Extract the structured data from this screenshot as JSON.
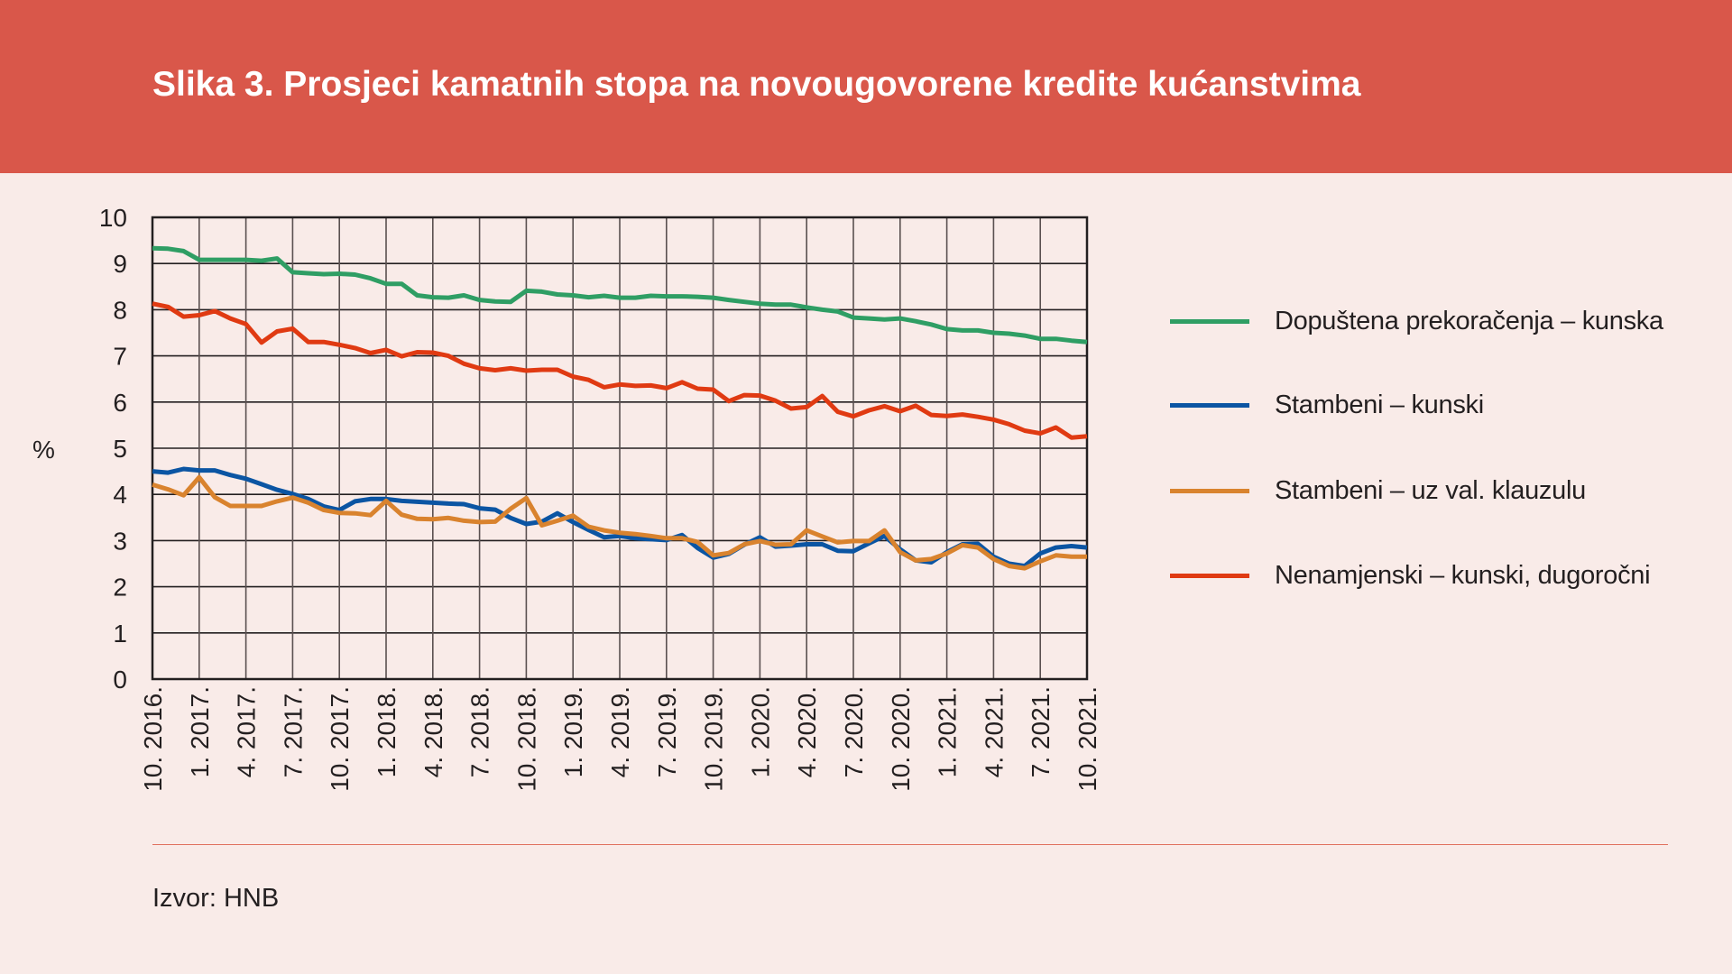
{
  "title": "Slika 3. Prosjeci kamatnih stopa na novougovorene kredite kućanstvima",
  "source": "Izvor: HNB",
  "colors": {
    "header": "#d9574a",
    "background": "#f9ebe8"
  },
  "chart_data": {
    "type": "line",
    "ylabel": "%",
    "ylim": [
      0,
      10
    ],
    "yticks": [
      "0",
      "1",
      "2",
      "3",
      "4",
      "5",
      "6",
      "7",
      "8",
      "9",
      "10"
    ],
    "x_start": "10.2016",
    "x_end": "10.2021",
    "frequency": "monthly",
    "xtick_labels": [
      "10. 2016.",
      "1. 2017.",
      "4. 2017.",
      "7. 2017.",
      "10. 2017.",
      "1. 2018.",
      "4. 2018.",
      "7. 2018.",
      "10. 2018.",
      "1. 2019.",
      "4. 2019.",
      "7. 2019.",
      "10. 2019.",
      "1. 2020.",
      "4. 2020.",
      "7. 2020.",
      "10. 2020.",
      "1. 2021.",
      "4. 2021.",
      "7. 2021.",
      "10. 2021."
    ],
    "grid": true,
    "legend_placement": "right",
    "series": [
      {
        "name": "Dopuštena prekoračenja – kunska",
        "color": "#2f9e64",
        "values": [
          9.33,
          9.32,
          9.27,
          9.08,
          9.08,
          9.08,
          9.08,
          9.06,
          9.11,
          8.81,
          8.79,
          8.77,
          8.78,
          8.76,
          8.68,
          8.56,
          8.56,
          8.31,
          8.27,
          8.26,
          8.31,
          8.21,
          8.18,
          8.17,
          8.41,
          8.39,
          8.33,
          8.31,
          8.27,
          8.3,
          8.26,
          8.26,
          8.3,
          8.29,
          8.29,
          8.28,
          8.26,
          8.21,
          8.17,
          8.13,
          8.11,
          8.11,
          8.05,
          8.0,
          7.96,
          7.83,
          7.81,
          7.79,
          7.81,
          7.75,
          7.68,
          7.58,
          7.55,
          7.55,
          7.5,
          7.48,
          7.44,
          7.37,
          7.37,
          7.33,
          7.3
        ]
      },
      {
        "name": "Stambeni – kunski",
        "color": "#0b55a3",
        "values": [
          4.5,
          4.47,
          4.55,
          4.52,
          4.52,
          4.42,
          4.34,
          4.22,
          4.1,
          4.01,
          3.9,
          3.74,
          3.66,
          3.85,
          3.9,
          3.9,
          3.86,
          3.84,
          3.82,
          3.8,
          3.79,
          3.7,
          3.67,
          3.49,
          3.36,
          3.41,
          3.59,
          3.4,
          3.23,
          3.07,
          3.1,
          3.05,
          3.03,
          3.01,
          3.12,
          2.84,
          2.63,
          2.71,
          2.91,
          3.07,
          2.87,
          2.89,
          2.92,
          2.92,
          2.78,
          2.77,
          2.94,
          3.1,
          2.81,
          2.57,
          2.53,
          2.75,
          2.92,
          2.93,
          2.65,
          2.5,
          2.45,
          2.72,
          2.85,
          2.88,
          2.85
        ]
      },
      {
        "name": "Stambeni – uz val. klauzulu",
        "color": "#d9832e",
        "values": [
          4.21,
          4.11,
          3.98,
          4.37,
          3.94,
          3.75,
          3.75,
          3.75,
          3.85,
          3.93,
          3.82,
          3.66,
          3.6,
          3.59,
          3.55,
          3.86,
          3.56,
          3.47,
          3.46,
          3.49,
          3.43,
          3.4,
          3.41,
          3.69,
          3.92,
          3.33,
          3.43,
          3.54,
          3.3,
          3.22,
          3.17,
          3.14,
          3.1,
          3.05,
          3.05,
          2.97,
          2.68,
          2.73,
          2.92,
          2.99,
          2.91,
          2.92,
          3.22,
          3.09,
          2.96,
          2.99,
          2.99,
          3.22,
          2.75,
          2.57,
          2.6,
          2.72,
          2.9,
          2.85,
          2.6,
          2.45,
          2.4,
          2.55,
          2.68,
          2.65,
          2.65
        ]
      },
      {
        "name": "Nenamjenski – kunski, dugoročni",
        "color": "#e03a12",
        "values": [
          8.13,
          8.06,
          7.85,
          7.88,
          7.97,
          7.81,
          7.69,
          7.29,
          7.53,
          7.59,
          7.3,
          7.3,
          7.24,
          7.17,
          7.06,
          7.13,
          6.99,
          7.08,
          7.07,
          7.0,
          6.83,
          6.73,
          6.69,
          6.73,
          6.68,
          6.7,
          6.7,
          6.55,
          6.48,
          6.32,
          6.38,
          6.35,
          6.36,
          6.3,
          6.43,
          6.29,
          6.27,
          6.02,
          6.15,
          6.14,
          6.03,
          5.86,
          5.89,
          6.13,
          5.79,
          5.69,
          5.82,
          5.91,
          5.8,
          5.92,
          5.72,
          5.7,
          5.73,
          5.68,
          5.62,
          5.52,
          5.38,
          5.32,
          5.45,
          5.23,
          5.26
        ]
      }
    ]
  }
}
